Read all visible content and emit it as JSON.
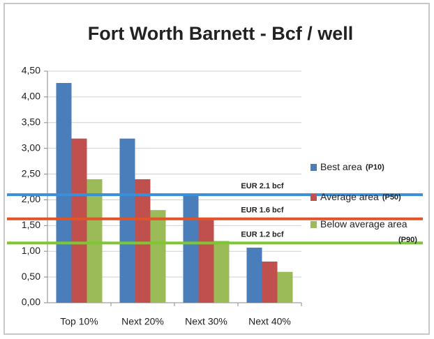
{
  "chart_data": {
    "type": "bar",
    "title": "Fort Worth Barnett - Bcf / well",
    "categories": [
      "Top 10%",
      "Next 20%",
      "Next 30%",
      "Next 40%"
    ],
    "series": [
      {
        "name": "Best area",
        "tag": "(P10)",
        "color": "#4a7ebb",
        "values": [
          4.27,
          3.19,
          2.12,
          1.07
        ]
      },
      {
        "name": "Average area",
        "tag": "(P50)",
        "color": "#c0504d",
        "values": [
          3.19,
          2.4,
          1.65,
          0.8
        ]
      },
      {
        "name": "Below average area",
        "tag": "(P90)",
        "color": "#9bbb59",
        "values": [
          2.4,
          1.8,
          1.2,
          0.6
        ]
      }
    ],
    "ylim": [
      0,
      4.5
    ],
    "yticks": [
      {
        "value": 0,
        "label": "0,00"
      },
      {
        "value": 0.5,
        "label": "0,50"
      },
      {
        "value": 1,
        "label": "1,00"
      },
      {
        "value": 1.5,
        "label": "1,50"
      },
      {
        "value": 2,
        "label": "2,00"
      },
      {
        "value": 2.5,
        "label": "2,50"
      },
      {
        "value": 3,
        "label": "3,00"
      },
      {
        "value": 3.5,
        "label": "3,50"
      },
      {
        "value": 4,
        "label": "4,00"
      },
      {
        "value": 4.5,
        "label": "4,50"
      }
    ],
    "grid": true,
    "legend": "right",
    "reference_lines": [
      {
        "label": "EUR 2.1 bcf",
        "value": 2.1,
        "color": "#3a8fd8"
      },
      {
        "label": "EUR 1.6 bcf",
        "value": 1.63,
        "color": "#e0542a"
      },
      {
        "label": "EUR 1.2 bcf",
        "value": 1.16,
        "color": "#7dc832"
      }
    ]
  }
}
